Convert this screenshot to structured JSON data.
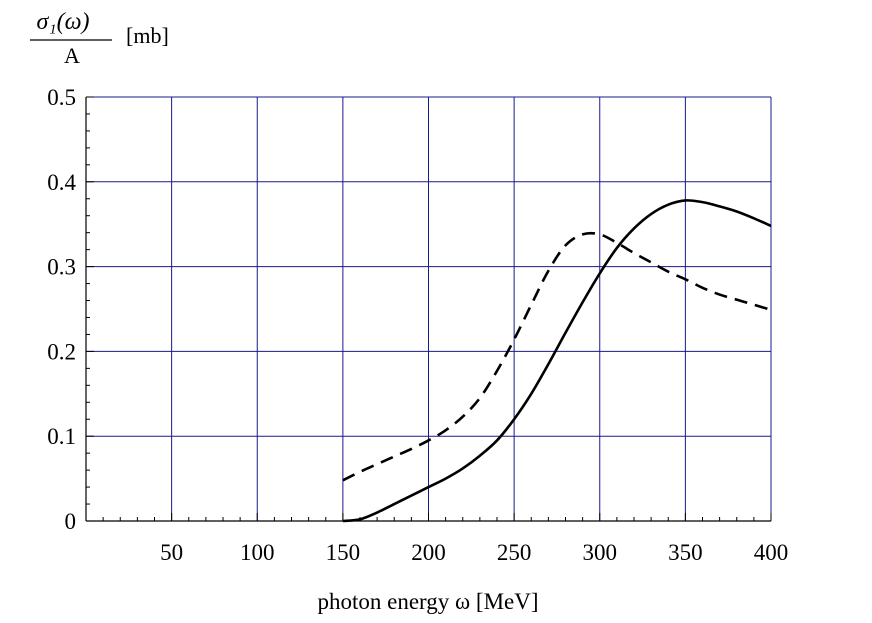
{
  "chart_data": {
    "type": "line",
    "ylabel_numerator": "σ₁(ω)",
    "ylabel_denominator": "A",
    "ylabel_unit": "[mb]",
    "xlabel": "photon energy ω  [MeV]",
    "xlim": [
      0,
      400
    ],
    "ylim": [
      0,
      0.5
    ],
    "x_ticks": [
      50,
      100,
      150,
      200,
      250,
      300,
      350,
      400
    ],
    "y_ticks": [
      0,
      0.1,
      0.2,
      0.3,
      0.4,
      0.5
    ],
    "y_tick_labels": [
      "0",
      "0.1",
      "0.2",
      "0.3",
      "0.4",
      "0.5"
    ],
    "grid": true,
    "grid_color": "#1a1a8c",
    "series": [
      {
        "name": "solid",
        "style": "solid",
        "color": "#000000",
        "x": [
          150,
          160,
          170,
          180,
          190,
          200,
          210,
          220,
          230,
          240,
          250,
          260,
          270,
          280,
          290,
          300,
          310,
          320,
          330,
          340,
          350,
          360,
          370,
          380,
          390,
          400
        ],
        "y": [
          0.0,
          0.002,
          0.01,
          0.02,
          0.03,
          0.04,
          0.05,
          0.062,
          0.077,
          0.095,
          0.12,
          0.15,
          0.185,
          0.222,
          0.258,
          0.292,
          0.322,
          0.345,
          0.362,
          0.373,
          0.378,
          0.376,
          0.371,
          0.365,
          0.357,
          0.348
        ]
      },
      {
        "name": "dashed",
        "style": "dashed",
        "color": "#000000",
        "x": [
          150,
          160,
          170,
          180,
          190,
          200,
          210,
          220,
          230,
          240,
          250,
          260,
          270,
          280,
          290,
          300,
          310,
          320,
          330,
          340,
          350,
          360,
          370,
          380,
          390,
          400
        ],
        "y": [
          0.048,
          0.058,
          0.067,
          0.076,
          0.085,
          0.095,
          0.107,
          0.123,
          0.145,
          0.177,
          0.214,
          0.255,
          0.295,
          0.325,
          0.338,
          0.338,
          0.328,
          0.316,
          0.305,
          0.294,
          0.285,
          0.275,
          0.267,
          0.261,
          0.255,
          0.249
        ]
      }
    ]
  }
}
